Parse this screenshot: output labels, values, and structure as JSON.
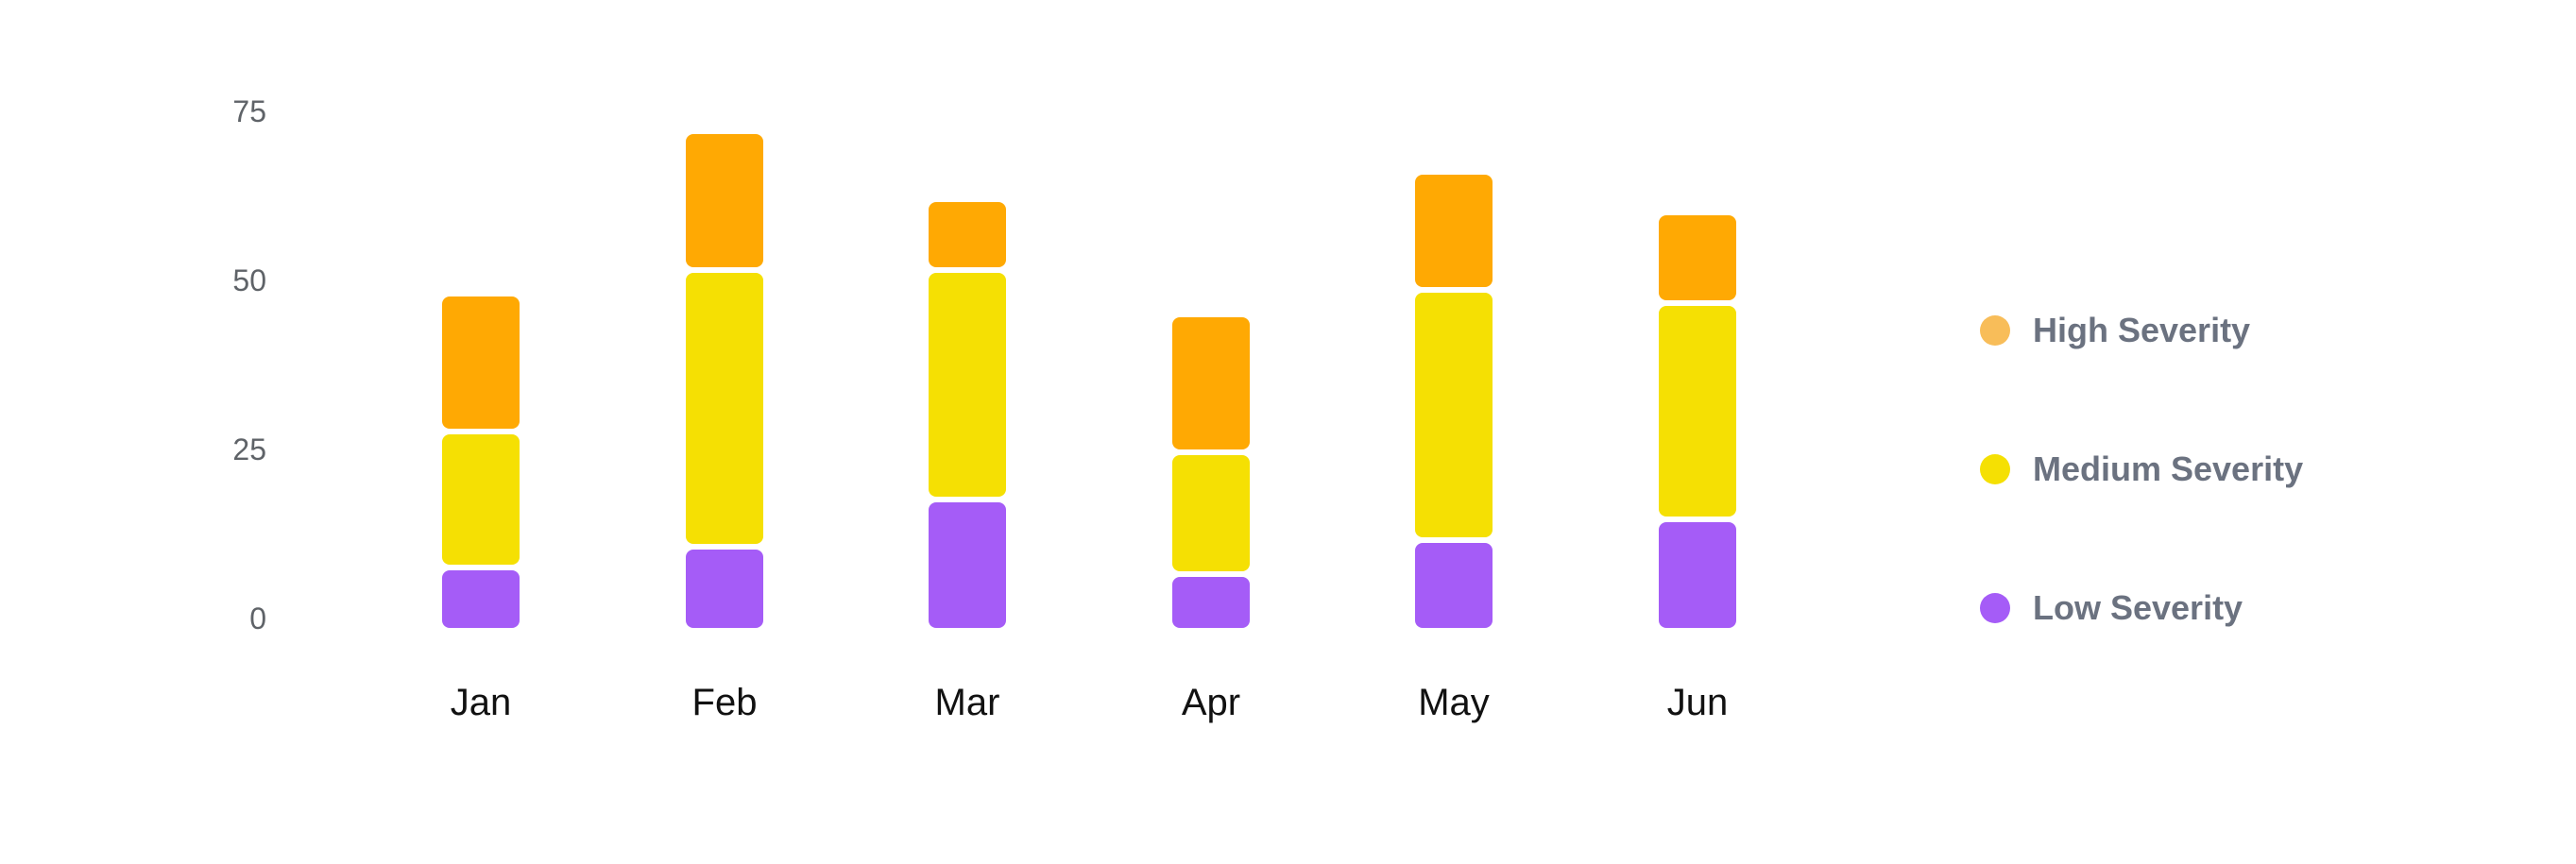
{
  "chart_data": {
    "type": "bar",
    "stacked": true,
    "title": "",
    "xlabel": "",
    "ylabel": "",
    "categories": [
      "Jan",
      "Feb",
      "Mar",
      "Apr",
      "May",
      "Jun"
    ],
    "series": [
      {
        "name": "Low Severity",
        "color": "#a55cf7",
        "values": [
          9,
          12,
          19,
          8,
          13,
          16
        ]
      },
      {
        "name": "Medium Severity",
        "color": "#f5e003",
        "values": [
          20,
          41,
          34,
          18,
          37,
          32
        ]
      },
      {
        "name": "High Severity",
        "color": "#ffa903",
        "values": [
          20,
          20,
          10,
          20,
          17,
          13
        ]
      }
    ],
    "totals": [
      49,
      73,
      63,
      46,
      67,
      61
    ],
    "ylim": [
      0,
      75
    ],
    "y_ticks": [
      "0",
      "25",
      "50",
      "75"
    ],
    "grid": false,
    "axis_lines": false,
    "legend_position": "right"
  },
  "legend": {
    "items": [
      {
        "label": "High Severity",
        "dot_color": "#f8bd59"
      },
      {
        "label": "Medium Severity",
        "dot_color": "#f5e003"
      },
      {
        "label": "Low Severity",
        "dot_color": "#a55cf7"
      }
    ]
  },
  "colors": {
    "background": "#ffffff",
    "tick_text": "#5f6368",
    "category_text": "#111111",
    "legend_text": "#6b7280"
  }
}
